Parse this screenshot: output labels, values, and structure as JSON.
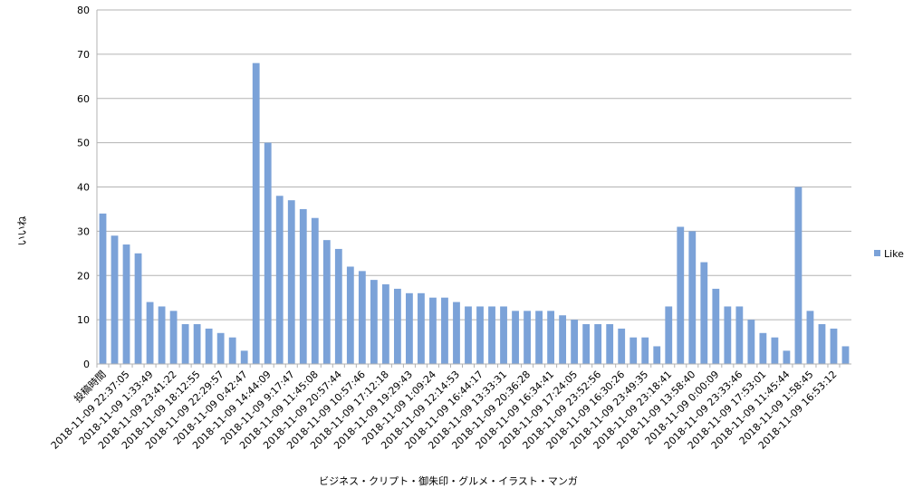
{
  "chart_data": {
    "type": "bar",
    "x_label": "ビジネス・クリプト・御朱印・グルメ・イラスト・マンガ",
    "y_label": "いいね",
    "categories": [
      "投稿時間",
      null,
      "2018-11-09 22:37:05",
      null,
      "2018-11-09 1:33:49",
      null,
      "2018-11-09 23:41:22",
      null,
      "2018-11-09 18:12:55",
      null,
      "2018-11-09 22:29:57",
      null,
      "2018-11-09 0:42:47",
      null,
      "2018-11-09 14:44:09",
      null,
      "2018-11-09 9:17:47",
      null,
      "2018-11-09 11:45:08",
      null,
      "2018-11-09 20:57:44",
      null,
      "2018-11-09 10:57:46",
      null,
      "2018-11-09 17:12:18",
      null,
      "2018-11-09 19:29:43",
      null,
      "2018-11-09 1:09:24",
      null,
      "2018-11-09 12:14:53",
      null,
      "2018-11-09 16:44:17",
      null,
      "2018-11-09 13:33:31",
      null,
      "2018-11-09 20:36:28",
      null,
      "2018-11-09 16:34:41",
      null,
      "2018-11-09 17:24:05",
      null,
      "2018-11-09 23:52:56",
      null,
      "2018-11-09 16:30:26",
      null,
      "2018-11-09 23:49:35",
      null,
      "2018-11-09 23:18:41",
      null,
      "2018-11-09 13:58:40",
      null,
      "2018-11-09 0:00:09",
      null,
      "2018-11-09 23:33:46",
      null,
      "2018-11-09 17:53:01",
      null,
      "2018-11-09 11:45:44",
      null,
      "2018-11-09 1:58:45",
      null,
      "2018-11-09 16:53:12",
      null
    ],
    "series": [
      {
        "name": "Like",
        "color": "#7ba2d8",
        "values": [
          34,
          29,
          27,
          25,
          14,
          13,
          12,
          9,
          9,
          8,
          7,
          6,
          3,
          68,
          50,
          38,
          37,
          35,
          33,
          28,
          26,
          22,
          21,
          19,
          18,
          17,
          16,
          16,
          15,
          15,
          14,
          13,
          13,
          13,
          13,
          12,
          12,
          12,
          12,
          11,
          10,
          9,
          9,
          9,
          8,
          6,
          6,
          4,
          13,
          31,
          30,
          23,
          17,
          13,
          13,
          10,
          7,
          6,
          3,
          40,
          12,
          9,
          8,
          4
        ]
      }
    ],
    "ylim": [
      0,
      80
    ],
    "yticks": [
      0,
      10,
      20,
      30,
      40,
      50,
      60,
      70,
      80
    ],
    "grid": true,
    "legend": "right"
  }
}
